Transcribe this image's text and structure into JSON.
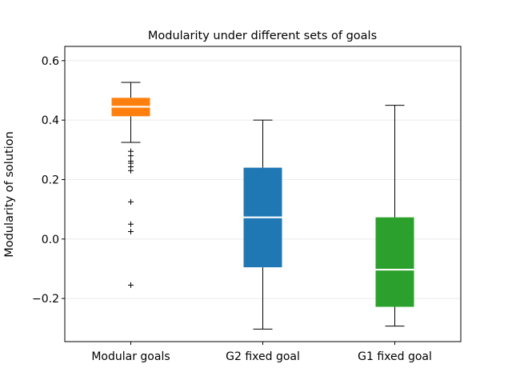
{
  "chart_data": {
    "type": "box",
    "title": "Modularity under different sets of goals",
    "xlabel": "",
    "ylabel": "Modularity of solution",
    "ylim": [
      -0.345,
      0.648
    ],
    "yticks": [
      -0.2,
      0.0,
      0.2,
      0.4,
      0.6
    ],
    "ytick_labels": [
      "−0.2",
      "0.0",
      "0.2",
      "0.4",
      "0.6"
    ],
    "grid": "horizontal",
    "categories": [
      "Modular goals",
      "G2 fixed goal",
      "G1 fixed goal"
    ],
    "boxes": [
      {
        "category": "Modular goals",
        "color": "#ff7f0e",
        "whisker_low": 0.325,
        "q1": 0.413,
        "median": 0.445,
        "q3": 0.475,
        "whisker_high": 0.527,
        "outliers": [
          0.295,
          0.28,
          0.262,
          0.255,
          0.243,
          0.23,
          0.125,
          0.05,
          0.025,
          -0.155
        ]
      },
      {
        "category": "G2 fixed goal",
        "color": "#1f77b4",
        "whisker_low": -0.303,
        "q1": -0.095,
        "median": 0.073,
        "q3": 0.24,
        "whisker_high": 0.4,
        "outliers": []
      },
      {
        "category": "G1 fixed goal",
        "color": "#2ca02c",
        "whisker_low": -0.293,
        "q1": -0.228,
        "median": -0.103,
        "q3": 0.073,
        "whisker_high": 0.45,
        "outliers": []
      }
    ]
  }
}
